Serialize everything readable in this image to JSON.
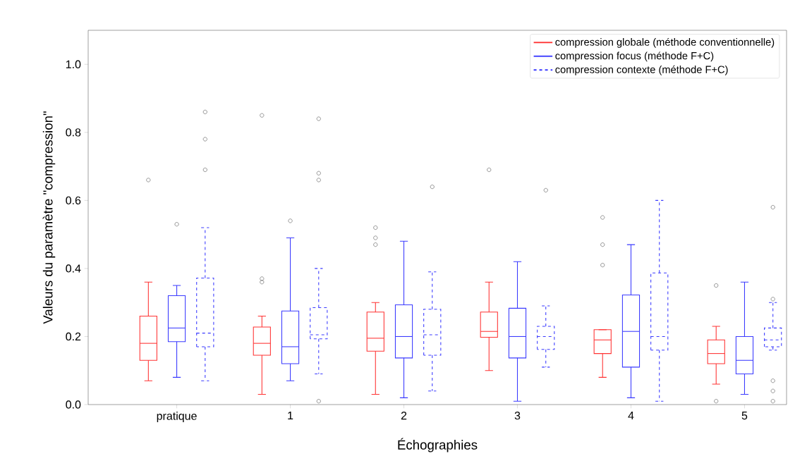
{
  "chart_data": {
    "type": "box",
    "xlabel": "Échographies",
    "ylabel": "Valeurs du paramètre \"compression\"",
    "categories": [
      "pratique",
      "1",
      "2",
      "3",
      "4",
      "5"
    ],
    "ylim": [
      0,
      1.1
    ],
    "yticks": [
      {
        "value": 0,
        "label": "0.0"
      },
      {
        "value": 0.2,
        "label": "0.2"
      },
      {
        "value": 0.4,
        "label": "0.4"
      },
      {
        "value": 0.6,
        "label": "0.6"
      },
      {
        "value": 0.8,
        "label": "0.8"
      },
      {
        "value": 1.0,
        "label": "1.0"
      }
    ],
    "legend": "top right",
    "series": [
      {
        "name": "compression globale (méthode conventionnelle)",
        "color": "#ff3333",
        "line_style": "solid",
        "boxes": [
          {
            "low": 0.07,
            "q1": 0.13,
            "median": 0.18,
            "q3": 0.26,
            "high": 0.36,
            "outliers": [
              0.66
            ]
          },
          {
            "low": 0.03,
            "q1": 0.145,
            "median": 0.18,
            "q3": 0.228,
            "high": 0.26,
            "outliers": [
              0.36,
              0.37,
              0.85
            ]
          },
          {
            "low": 0.03,
            "q1": 0.157,
            "median": 0.195,
            "q3": 0.272,
            "high": 0.3,
            "outliers": [
              0.47,
              0.49,
              0.52
            ]
          },
          {
            "low": 0.1,
            "q1": 0.198,
            "median": 0.215,
            "q3": 0.272,
            "high": 0.36,
            "outliers": [
              0.69
            ]
          },
          {
            "low": 0.08,
            "q1": 0.15,
            "median": 0.19,
            "q3": 0.22,
            "high": 0.22,
            "outliers": [
              0.41,
              0.47,
              0.55
            ]
          },
          {
            "low": 0.06,
            "q1": 0.12,
            "median": 0.15,
            "q3": 0.19,
            "high": 0.23,
            "outliers": [
              0.01,
              0.35
            ]
          }
        ]
      },
      {
        "name": "compression focus (méthode F+C)",
        "color": "#3b3bff",
        "line_style": "solid",
        "boxes": [
          {
            "low": 0.08,
            "q1": 0.185,
            "median": 0.225,
            "q3": 0.32,
            "high": 0.35,
            "outliers": [
              0.53
            ]
          },
          {
            "low": 0.07,
            "q1": 0.12,
            "median": 0.17,
            "q3": 0.275,
            "high": 0.49,
            "outliers": [
              0.54
            ]
          },
          {
            "low": 0.02,
            "q1": 0.137,
            "median": 0.2,
            "q3": 0.293,
            "high": 0.48
          },
          {
            "low": 0.01,
            "q1": 0.137,
            "median": 0.2,
            "q3": 0.283,
            "high": 0.42
          },
          {
            "low": 0.02,
            "q1": 0.11,
            "median": 0.215,
            "q3": 0.322,
            "high": 0.47
          },
          {
            "low": 0.03,
            "q1": 0.09,
            "median": 0.13,
            "q3": 0.2,
            "high": 0.36
          }
        ]
      },
      {
        "name": "compression contexte (méthode F+C)",
        "color": "#3b3bff",
        "line_style": "dashed",
        "boxes": [
          {
            "low": 0.07,
            "q1": 0.17,
            "median": 0.21,
            "q3": 0.372,
            "high": 0.52,
            "outliers": [
              0.69,
              0.78,
              0.86
            ]
          },
          {
            "low": 0.09,
            "q1": 0.193,
            "median": 0.205,
            "q3": 0.285,
            "high": 0.4,
            "outliers": [
              0.01,
              0.66,
              0.68,
              0.84
            ]
          },
          {
            "low": 0.04,
            "q1": 0.145,
            "median": 0.205,
            "q3": 0.28,
            "high": 0.39,
            "outliers": [
              0.64
            ]
          },
          {
            "low": 0.11,
            "q1": 0.162,
            "median": 0.2,
            "q3": 0.23,
            "high": 0.29,
            "outliers": [
              0.63
            ]
          },
          {
            "low": 0.01,
            "q1": 0.16,
            "median": 0.2,
            "q3": 0.387,
            "high": 0.6
          },
          {
            "low": 0.16,
            "q1": 0.17,
            "median": 0.19,
            "q3": 0.225,
            "high": 0.3,
            "outliers": [
              0.01,
              0.04,
              0.07,
              0.31,
              0.58
            ]
          }
        ]
      }
    ]
  }
}
